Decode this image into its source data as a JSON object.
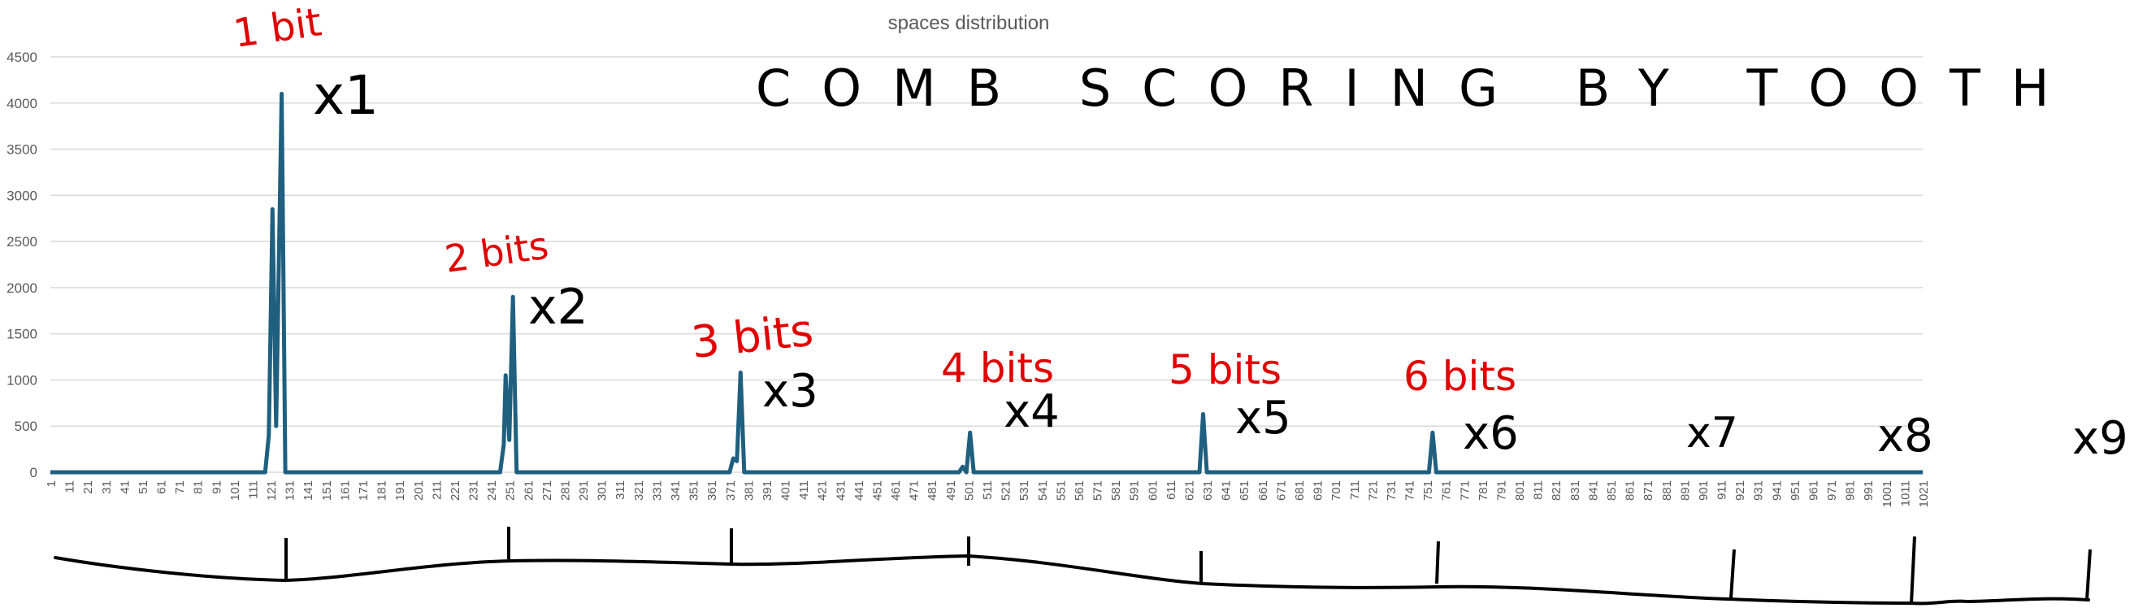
{
  "chart_data": {
    "type": "line",
    "title": "spaces distribution",
    "ylim": [
      0,
      4500
    ],
    "yticks": [
      0,
      500,
      1000,
      1500,
      2000,
      2500,
      3000,
      3500,
      4000,
      4500
    ],
    "xlim": [
      1,
      1021
    ],
    "xtick_labels": [
      "1",
      "11",
      "21",
      "31",
      "41",
      "51",
      "61",
      "71",
      "81",
      "91",
      "101",
      "111",
      "121",
      "131",
      "141",
      "151",
      "161",
      "171",
      "181",
      "191",
      "201",
      "211",
      "221",
      "231",
      "241",
      "251",
      "261",
      "271",
      "281",
      "291",
      "301",
      "311",
      "321",
      "331",
      "341",
      "351",
      "361",
      "371",
      "381",
      "391",
      "401",
      "411",
      "421",
      "431",
      "441",
      "451",
      "461",
      "471",
      "481",
      "491",
      "501",
      "511",
      "521",
      "531",
      "541",
      "551",
      "561",
      "571",
      "581",
      "591",
      "601",
      "611",
      "621",
      "631",
      "641",
      "651",
      "661",
      "671",
      "681",
      "691",
      "701",
      "711",
      "721",
      "731",
      "741",
      "751",
      "761",
      "771",
      "781",
      "791",
      "801",
      "811",
      "821",
      "831",
      "841",
      "851",
      "861",
      "871",
      "881",
      "891",
      "901",
      "911",
      "921",
      "931",
      "941",
      "951",
      "961",
      "971",
      "981",
      "991",
      "1001",
      "1011",
      "1021"
    ],
    "grid": true,
    "series": [
      {
        "color": "#1f5f7f",
        "points": [
          [
            1,
            0
          ],
          [
            118,
            0
          ],
          [
            120,
            400
          ],
          [
            122,
            2850
          ],
          [
            124,
            500
          ],
          [
            127,
            4100
          ],
          [
            129,
            0
          ],
          [
            246,
            0
          ],
          [
            248,
            300
          ],
          [
            249,
            1050
          ],
          [
            251,
            350
          ],
          [
            253,
            1900
          ],
          [
            255,
            0
          ],
          [
            371,
            0
          ],
          [
            373,
            150
          ],
          [
            375,
            120
          ],
          [
            377,
            1080
          ],
          [
            379,
            0
          ],
          [
            496,
            0
          ],
          [
            498,
            60
          ],
          [
            500,
            0
          ],
          [
            502,
            430
          ],
          [
            504,
            0
          ],
          [
            627,
            0
          ],
          [
            629,
            630
          ],
          [
            631,
            0
          ],
          [
            752,
            0
          ],
          [
            754,
            430
          ],
          [
            756,
            0
          ],
          [
            1021,
            0
          ]
        ]
      }
    ]
  },
  "annotations": {
    "heading": "COMB SCORING BY TOOTH",
    "red_labels": [
      "1 bit",
      "2 bits",
      "3 bits",
      "4 bits",
      "5 bits",
      "6 bits"
    ],
    "multipliers": [
      "x1",
      "x2",
      "x3",
      "x4",
      "x5",
      "x6",
      "x7",
      "x8",
      "x9"
    ]
  },
  "colors": {
    "line": "#1f5f7f",
    "grid": "#d9d9d9",
    "axis_text": "#595959",
    "ink_black": "#000000",
    "ink_red": "#e00000"
  }
}
